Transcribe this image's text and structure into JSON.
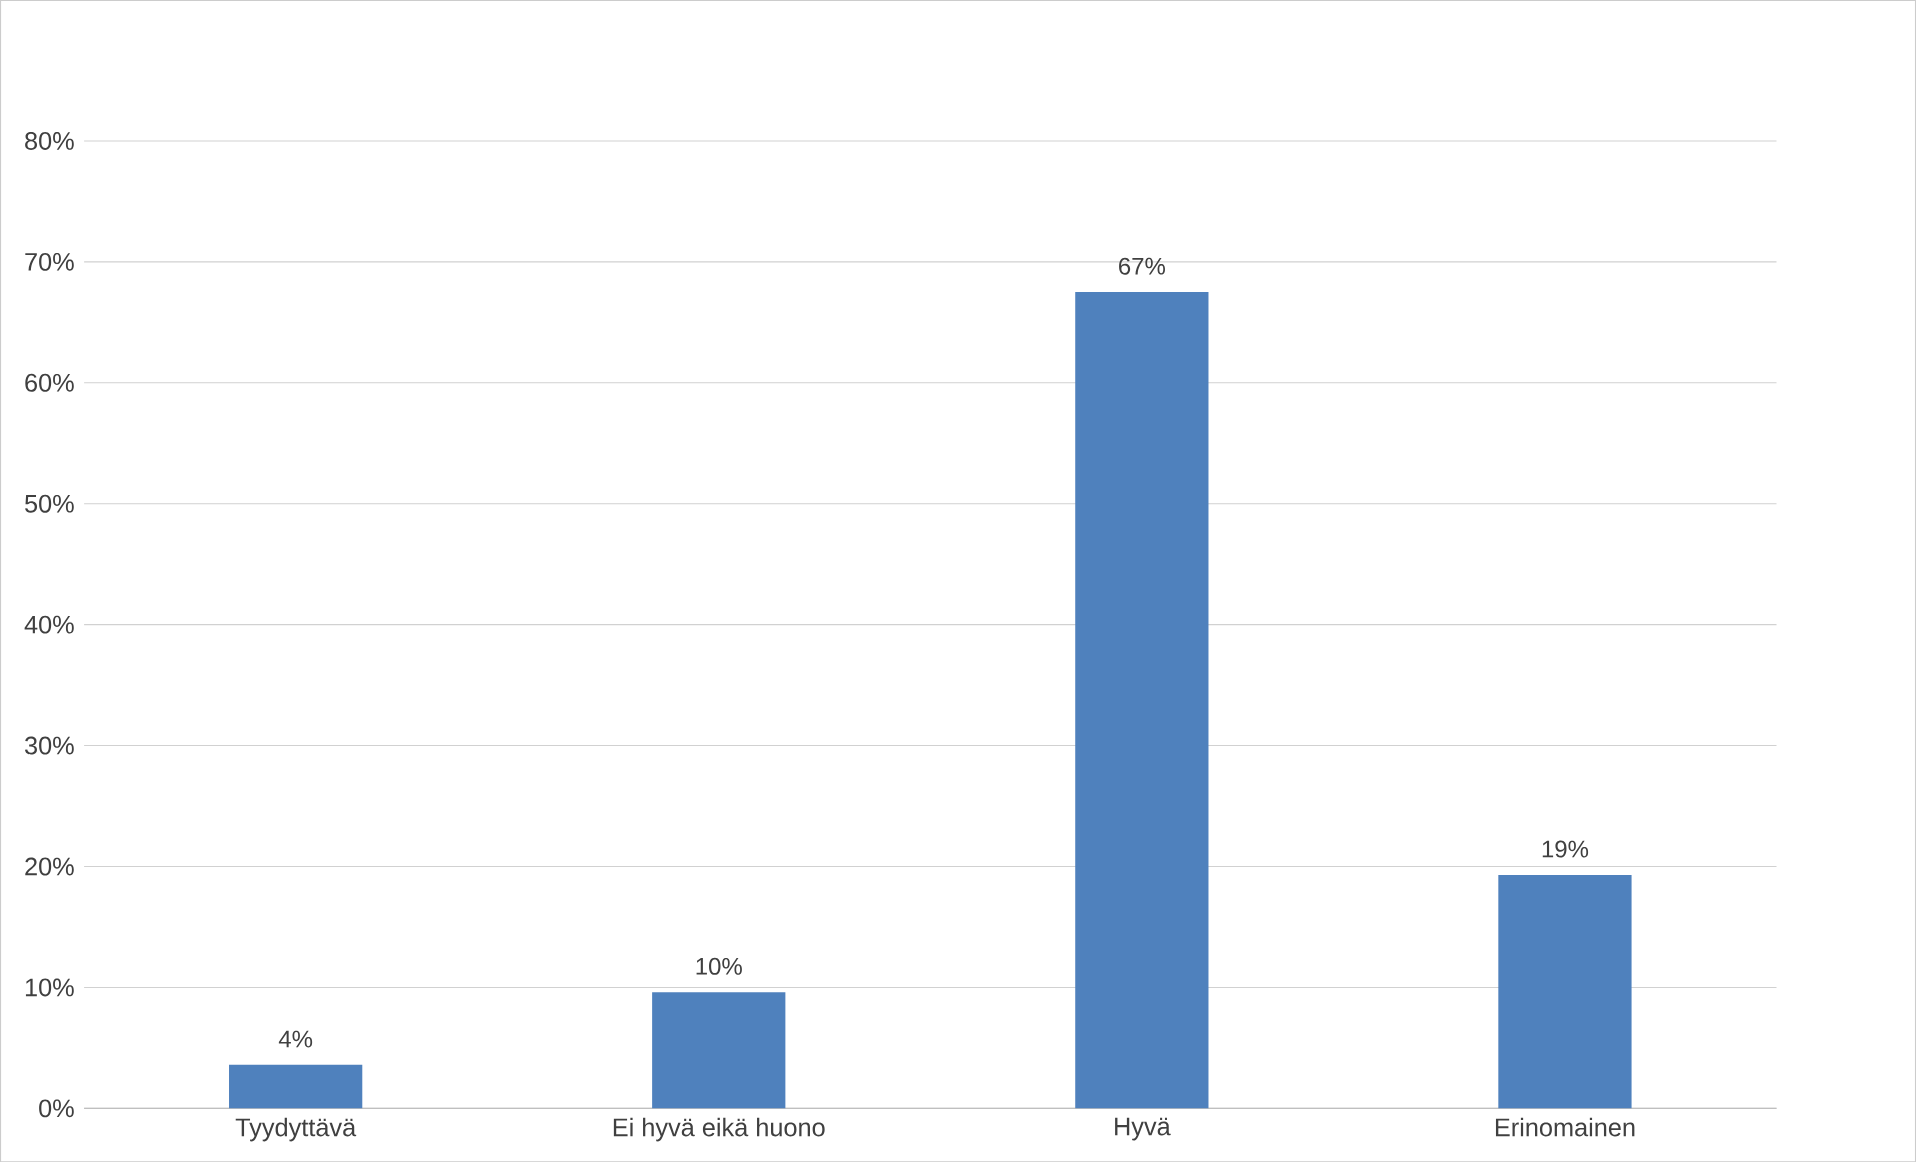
{
  "chart_data": {
    "type": "bar",
    "categories": [
      "Tyydyttävä",
      "Ei hyvä eikä huono",
      "Hyvä",
      "Erinomainen"
    ],
    "values": [
      3.6,
      9.6,
      67.5,
      19.3
    ],
    "value_labels": [
      "4%",
      "10%",
      "67%",
      "19%"
    ],
    "color": "#4f81bd",
    "ylim": [
      0,
      80
    ],
    "yticks": [
      {
        "value": 0,
        "label": "0%"
      },
      {
        "value": 10,
        "label": "10%"
      },
      {
        "value": 20,
        "label": "20%"
      },
      {
        "value": 30,
        "label": "30%"
      },
      {
        "value": 40,
        "label": "40%"
      },
      {
        "value": 50,
        "label": "50%"
      },
      {
        "value": 60,
        "label": "60%"
      },
      {
        "value": 70,
        "label": "70%"
      },
      {
        "value": 80,
        "label": "80%"
      }
    ],
    "grid": "y"
  }
}
